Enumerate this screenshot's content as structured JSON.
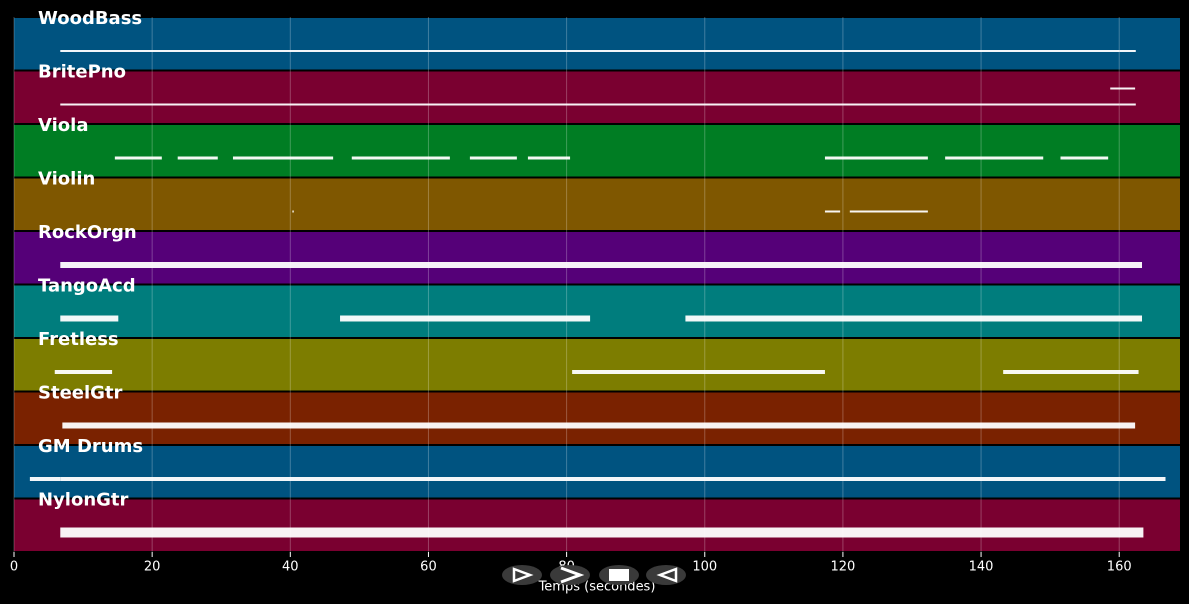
{
  "chart_data": {
    "type": "pianoroll",
    "x_label": "Temps (secondes)",
    "xlim": [
      0,
      168.8
    ],
    "xticks": [
      0,
      20,
      40,
      60,
      80,
      100,
      120,
      140,
      160
    ],
    "grid": true,
    "tracks": [
      {
        "name": "WoodBass",
        "color": "#005380",
        "segments": [
          [
            6.7,
            160
          ],
          [
            160,
            162.4
          ]
        ]
      },
      {
        "name": "BritePno",
        "color": "#7a0030",
        "segments": [
          [
            6.7,
            160
          ],
          [
            160,
            162.4
          ],
          [
            158.7,
            162.3
          ]
        ]
      },
      {
        "name": "Viola",
        "color": "#007d23",
        "segments": [
          [
            14.6,
            21.4
          ],
          [
            23.7,
            29.5
          ],
          [
            31.7,
            46.2
          ],
          [
            48.9,
            63.1
          ],
          [
            66,
            72.8
          ],
          [
            74.4,
            80.5
          ],
          [
            117.4,
            132.3
          ],
          [
            134.8,
            149
          ],
          [
            151.5,
            158.4
          ]
        ]
      },
      {
        "name": "Violin",
        "color": "#7f5700",
        "segments": [
          [
            40.3,
            40.5
          ],
          [
            117.4,
            119.6
          ],
          [
            121,
            132.3
          ]
        ]
      },
      {
        "name": "RockOrgn",
        "color": "#550078",
        "segments": [
          [
            6.7,
            163.3
          ]
        ]
      },
      {
        "name": "TangoAcd",
        "color": "#007d7d",
        "segments": [
          [
            6.7,
            15.1
          ],
          [
            47.2,
            83.4
          ],
          [
            97.2,
            163.3
          ]
        ]
      },
      {
        "name": "Fretless",
        "color": "#7d7d00",
        "segments": [
          [
            5.9,
            14.2
          ],
          [
            80.8,
            117.4
          ],
          [
            143.2,
            162.8
          ]
        ]
      },
      {
        "name": "SteelGtr",
        "color": "#7a2200",
        "segments": [
          [
            7,
            162.3
          ]
        ]
      },
      {
        "name": "GM Drums",
        "color": "#005380",
        "segments": [
          [
            2.3,
            6.7
          ],
          [
            6.7,
            166.7
          ]
        ]
      },
      {
        "name": "NylonGtr",
        "color": "#7a0030",
        "segments": [
          [
            6.7,
            163.5
          ]
        ]
      }
    ]
  }
}
